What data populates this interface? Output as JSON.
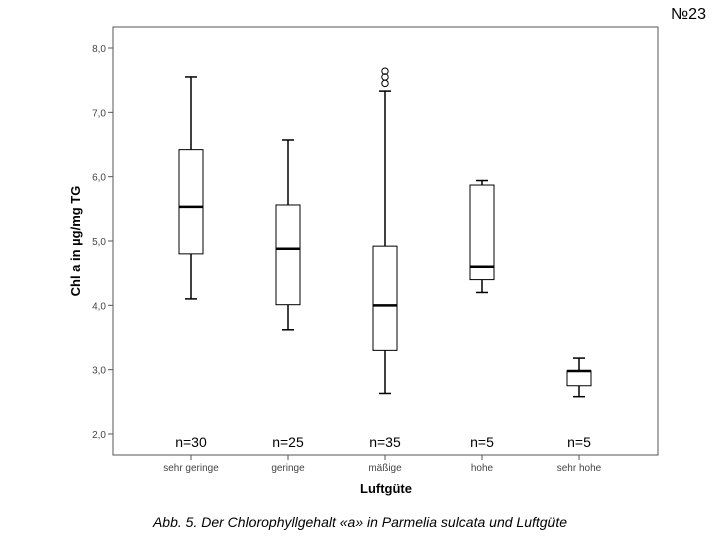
{
  "page_number": "№23",
  "caption": "Abb. 5. Der Chlorophyllgehalt «a» in Parmelia sulcata und Luftgüte",
  "chart_data": {
    "type": "boxplot",
    "title": "",
    "xlabel": "Luftgüte",
    "ylabel": "Chl a in µg/mg TG",
    "ylim": [
      2.0,
      8.0
    ],
    "yticks": [
      "2,0",
      "3,0",
      "4,0",
      "5,0",
      "6,0",
      "7,0",
      "8,0"
    ],
    "categories": [
      "sehr geringe",
      "geringe",
      "mäßige",
      "hohe",
      "sehr hohe"
    ],
    "counts": [
      "n=30",
      "n=25",
      "n=35",
      "n=5",
      "n=5"
    ],
    "boxes": [
      {
        "min": 4.1,
        "q1": 4.8,
        "median": 5.53,
        "q3": 6.42,
        "max": 7.55,
        "outliers": []
      },
      {
        "min": 3.62,
        "q1": 4.01,
        "median": 4.88,
        "q3": 5.56,
        "max": 6.57,
        "outliers": []
      },
      {
        "min": 2.63,
        "q1": 3.3,
        "median": 4.0,
        "q3": 4.92,
        "max": 7.33,
        "outliers": [
          7.45,
          7.55,
          7.64
        ]
      },
      {
        "min": 4.2,
        "q1": 4.4,
        "median": 4.6,
        "q3": 5.87,
        "max": 5.94,
        "outliers": []
      },
      {
        "min": 2.58,
        "q1": 2.75,
        "median": 2.98,
        "q3": 2.98,
        "max": 3.18,
        "outliers": []
      }
    ],
    "grid": false,
    "legend": "none"
  }
}
